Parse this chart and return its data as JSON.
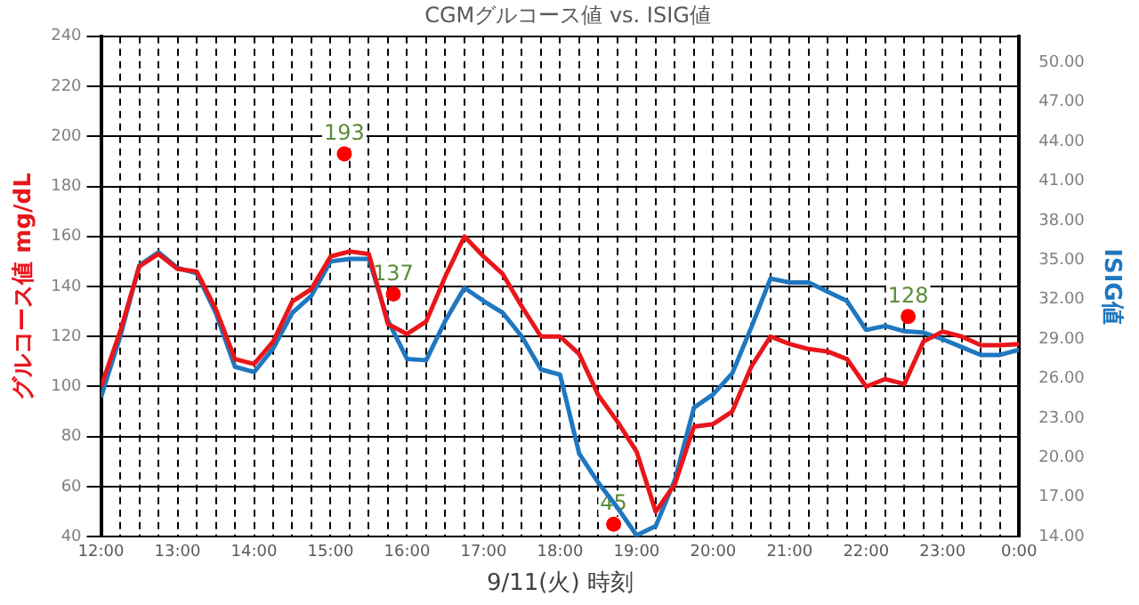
{
  "chart_data": {
    "type": "line",
    "title": "CGMグルコース値 vs. ISIG値",
    "xlabel": "9/11(火) 時刻",
    "ylabel": "グルコース値 mg/dL",
    "y2label": "ISIG値",
    "x": [
      12,
      12.25,
      12.5,
      12.75,
      13,
      13.25,
      13.5,
      13.75,
      14,
      14.25,
      14.5,
      14.75,
      15,
      15.25,
      15.5,
      15.75,
      16,
      16.25,
      16.5,
      16.75,
      17,
      17.25,
      17.5,
      17.75,
      18,
      18.25,
      18.5,
      18.75,
      19,
      19.25,
      19.5,
      19.75,
      20,
      20.25,
      20.5,
      20.75,
      21,
      21.25,
      21.5,
      21.75,
      22,
      22.25,
      22.5,
      22.75,
      23,
      23.25,
      23.5,
      23.75,
      24
    ],
    "series": [
      {
        "type": "line",
        "color": "#e8161b",
        "values": [
          100,
          122,
          148,
          153,
          147,
          146,
          131,
          111,
          109,
          118,
          134,
          139,
          152,
          154,
          153,
          125,
          121,
          126,
          144,
          160,
          152,
          145,
          132,
          120,
          120,
          113,
          96.5,
          86,
          74,
          50,
          61,
          84,
          85,
          90,
          108,
          120,
          117,
          115,
          114,
          111,
          100,
          103,
          101,
          118,
          122,
          120,
          116.5,
          116.5,
          117
        ]
      },
      {
        "type": "line",
        "axis": "y2",
        "color": "#1f77c0",
        "values": [
          24.6,
          29.2,
          34.6,
          35.6,
          34.4,
          34.0,
          31.0,
          26.9,
          26.5,
          28.3,
          31.0,
          32.3,
          34.9,
          35.1,
          35.1,
          30.4,
          27.5,
          27.4,
          30.4,
          32.9,
          31.9,
          31.0,
          29.2,
          26.7,
          26.3,
          20.3,
          18.1,
          16.2,
          14.1,
          14.8,
          18.3,
          23.8,
          24.8,
          26.4,
          29.9,
          33.6,
          33.3,
          33.3,
          32.6,
          31.9,
          29.7,
          30.0,
          29.6,
          29.5,
          29.0,
          28.4,
          27.8,
          27.8,
          28.2
        ]
      },
      {
        "type": "scatter",
        "marker": "circle",
        "color": "#ff0000",
        "x": [
          15.18,
          15.82,
          18.7,
          22.55
        ],
        "values": [
          193,
          137,
          45,
          128
        ],
        "value_labels": [
          "193",
          "137",
          "45",
          "128"
        ]
      }
    ],
    "xlim": [
      12,
      24
    ],
    "xticks": [
      {
        "value": 12,
        "label": "12:00"
      },
      {
        "value": 12.25,
        "label": null
      },
      {
        "value": 12.5,
        "label": null
      },
      {
        "value": 12.75,
        "label": null
      },
      {
        "value": 13,
        "label": "13:00"
      },
      {
        "value": 13.25,
        "label": null
      },
      {
        "value": 13.5,
        "label": null
      },
      {
        "value": 13.75,
        "label": null
      },
      {
        "value": 14,
        "label": "14:00"
      },
      {
        "value": 14.25,
        "label": null
      },
      {
        "value": 14.5,
        "label": null
      },
      {
        "value": 14.75,
        "label": null
      },
      {
        "value": 15,
        "label": "15:00"
      },
      {
        "value": 15.25,
        "label": null
      },
      {
        "value": 15.5,
        "label": null
      },
      {
        "value": 15.75,
        "label": null
      },
      {
        "value": 16,
        "label": "16:00"
      },
      {
        "value": 16.25,
        "label": null
      },
      {
        "value": 16.5,
        "label": null
      },
      {
        "value": 16.75,
        "label": null
      },
      {
        "value": 17,
        "label": "17:00"
      },
      {
        "value": 17.25,
        "label": null
      },
      {
        "value": 17.5,
        "label": null
      },
      {
        "value": 17.75,
        "label": null
      },
      {
        "value": 18,
        "label": "18:00"
      },
      {
        "value": 18.25,
        "label": null
      },
      {
        "value": 18.5,
        "label": null
      },
      {
        "value": 18.75,
        "label": null
      },
      {
        "value": 19,
        "label": "19:00"
      },
      {
        "value": 19.25,
        "label": null
      },
      {
        "value": 19.5,
        "label": null
      },
      {
        "value": 19.75,
        "label": null
      },
      {
        "value": 20,
        "label": "20:00"
      },
      {
        "value": 20.25,
        "label": null
      },
      {
        "value": 20.5,
        "label": null
      },
      {
        "value": 20.75,
        "label": null
      },
      {
        "value": 21,
        "label": "21:00"
      },
      {
        "value": 21.25,
        "label": null
      },
      {
        "value": 21.5,
        "label": null
      },
      {
        "value": 21.75,
        "label": null
      },
      {
        "value": 22,
        "label": "22:00"
      },
      {
        "value": 22.25,
        "label": null
      },
      {
        "value": 22.5,
        "label": null
      },
      {
        "value": 22.75,
        "label": null
      },
      {
        "value": 23,
        "label": "23:00"
      },
      {
        "value": 23.25,
        "label": null
      },
      {
        "value": 23.5,
        "label": null
      },
      {
        "value": 23.75,
        "label": null
      },
      {
        "value": 24,
        "label": "0:00"
      }
    ],
    "ylim": [
      40,
      240
    ],
    "yticks": [
      40,
      60,
      80,
      100,
      120,
      140,
      160,
      180,
      200,
      220,
      240
    ],
    "y2lim": [
      14,
      52
    ],
    "y2ticks": [
      {
        "value": 14,
        "label": "14.00"
      },
      {
        "value": 17,
        "label": "17.00"
      },
      {
        "value": 20,
        "label": "20.00"
      },
      {
        "value": 23,
        "label": "23.00"
      },
      {
        "value": 26,
        "label": "26.00"
      },
      {
        "value": 29,
        "label": "29.00"
      },
      {
        "value": 32,
        "label": "32.00"
      },
      {
        "value": 35,
        "label": "35.00"
      },
      {
        "value": 38,
        "label": "38.00"
      },
      {
        "value": 41,
        "label": "41.00"
      },
      {
        "value": 44,
        "label": "44.00"
      },
      {
        "value": 47,
        "label": "47.00"
      },
      {
        "value": 50,
        "label": "50.00"
      }
    ],
    "grid": true,
    "legend": false
  }
}
